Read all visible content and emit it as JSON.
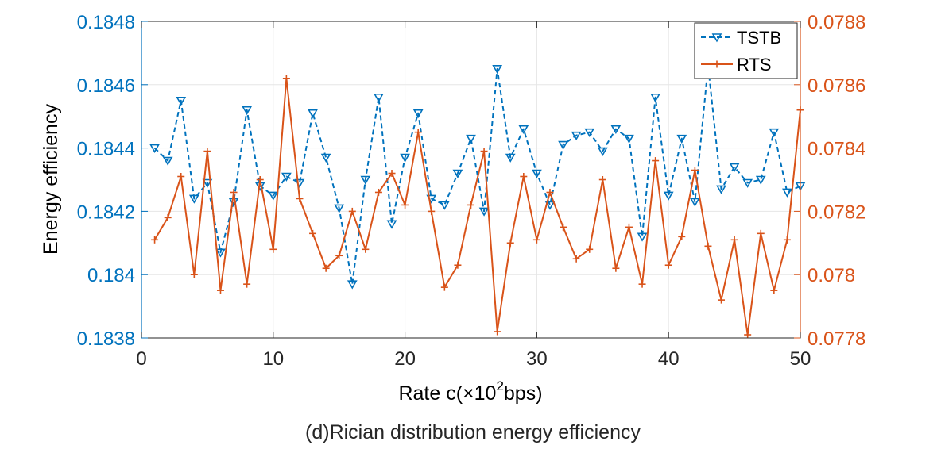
{
  "chart_data": {
    "type": "line",
    "xlabel_base": "Rate c(×10",
    "xlabel_sup": "2",
    "xlabel_tail": "bps)",
    "ylabel": "Energy efficiency",
    "caption": "(d)Rician distribution energy efficiency",
    "xlim": [
      0,
      50
    ],
    "xticks": [
      0,
      10,
      20,
      30,
      40,
      50
    ],
    "ylim_left": [
      0.1838,
      0.1848
    ],
    "yticks_left": [
      "0.1838",
      "0.184",
      "0.1842",
      "0.1844",
      "0.1846",
      "0.1848"
    ],
    "ylim_right": [
      0.0778,
      0.0788
    ],
    "yticks_right": [
      "0.0778",
      "0.078",
      "0.0782",
      "0.0784",
      "0.0786",
      "0.0788"
    ],
    "grid": true,
    "legend_position": "top-right",
    "colors": {
      "left": "#0072BD",
      "right": "#D95319"
    },
    "x": [
      1,
      2,
      3,
      4,
      5,
      6,
      7,
      8,
      9,
      10,
      11,
      12,
      13,
      14,
      15,
      16,
      17,
      18,
      19,
      20,
      21,
      22,
      23,
      24,
      25,
      26,
      27,
      28,
      29,
      30,
      31,
      32,
      33,
      34,
      35,
      36,
      37,
      38,
      39,
      40,
      41,
      42,
      43,
      44,
      45,
      46,
      47,
      48,
      49,
      50
    ],
    "series": [
      {
        "name": "TSTB",
        "axis": "left",
        "color": "#0072BD",
        "style": "dashed",
        "marker": "triangle-down",
        "values": [
          0.1844,
          0.18436,
          0.18455,
          0.18424,
          0.18429,
          0.18407,
          0.18423,
          0.18452,
          0.18428,
          0.18425,
          0.18431,
          0.18429,
          0.18451,
          0.18437,
          0.18421,
          0.18397,
          0.1843,
          0.18456,
          0.18416,
          0.18437,
          0.18451,
          0.18424,
          0.18422,
          0.18432,
          0.18443,
          0.1842,
          0.18465,
          0.18437,
          0.18446,
          0.18432,
          0.18422,
          0.18441,
          0.18444,
          0.18445,
          0.18439,
          0.18446,
          0.18443,
          0.18412,
          0.18456,
          0.18425,
          0.18443,
          0.18423,
          0.18466,
          0.18427,
          0.18434,
          0.18429,
          0.1843,
          0.18445,
          0.18426,
          0.18428
        ]
      },
      {
        "name": "RTS",
        "axis": "right",
        "color": "#D95319",
        "style": "solid",
        "marker": "plus",
        "values": [
          0.07811,
          0.07818,
          0.07831,
          0.078,
          0.07839,
          0.07795,
          0.07826,
          0.07797,
          0.0783,
          0.07808,
          0.07862,
          0.07824,
          0.07813,
          0.07802,
          0.07806,
          0.0782,
          0.07808,
          0.07826,
          0.07832,
          0.07822,
          0.07845,
          0.0782,
          0.07796,
          0.07803,
          0.07822,
          0.07839,
          0.07782,
          0.0781,
          0.07831,
          0.07811,
          0.07826,
          0.07815,
          0.07805,
          0.07808,
          0.0783,
          0.07802,
          0.07815,
          0.07797,
          0.07836,
          0.07803,
          0.07812,
          0.07833,
          0.07809,
          0.07792,
          0.07811,
          0.07781,
          0.07813,
          0.07795,
          0.07811,
          0.07852
        ]
      }
    ]
  }
}
